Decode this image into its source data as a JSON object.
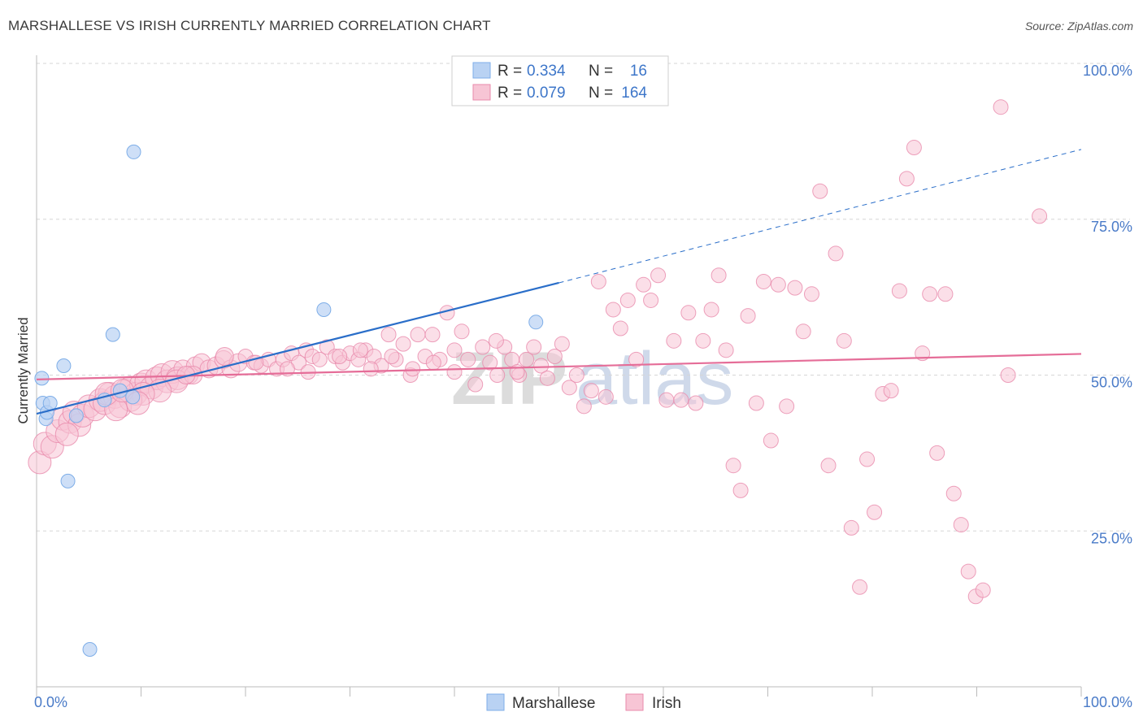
{
  "title": "MARSHALLESE VS IRISH CURRENTLY MARRIED CORRELATION CHART",
  "source": "Source: ZipAtlas.com",
  "watermark": {
    "zip": "ZIP",
    "atlas": "atlas"
  },
  "colors": {
    "marshallese": "#7eaee8",
    "marshallese_fill": "#b9d2f3",
    "marshallese_line": "#2a6ec9",
    "irish": "#e98aab",
    "irish_fill": "#f7c5d5",
    "irish_line": "#e56d98",
    "tick_label": "#4a7bc8",
    "grid": "#d6d6d6"
  },
  "legend": {
    "r_label": "R =",
    "n_label": "N =",
    "rows": [
      {
        "series": "Marshallese",
        "r": "0.334",
        "n": "16"
      },
      {
        "series": "Irish",
        "r": "0.079",
        "n": "164"
      }
    ]
  },
  "chart_data": {
    "type": "scatter",
    "title": "MARSHALLESE VS IRISH CURRENTLY MARRIED CORRELATION CHART",
    "xlabel": "",
    "ylabel": "Currently Married",
    "xlim": [
      0,
      100
    ],
    "ylim": [
      0,
      100
    ],
    "x_tick_labels": [
      "0.0%",
      "100.0%"
    ],
    "y_tick_labels": [
      "25.0%",
      "50.0%",
      "75.0%",
      "100.0%"
    ],
    "y_ticks": [
      25,
      50,
      75,
      100
    ],
    "grid": "horizontal dashed",
    "legend_position": "bottom-center",
    "series": [
      {
        "name": "Marshallese",
        "color": "#7eaee8",
        "points": [
          [
            0.5,
            49.5
          ],
          [
            0.6,
            45.5
          ],
          [
            0.9,
            43
          ],
          [
            1.0,
            44
          ],
          [
            1.3,
            45.5
          ],
          [
            2.6,
            51.5
          ],
          [
            3.0,
            33
          ],
          [
            3.8,
            43.5
          ],
          [
            5.1,
            6
          ],
          [
            7.3,
            56.5
          ],
          [
            9.2,
            46.5
          ],
          [
            9.3,
            85.8
          ],
          [
            27.5,
            60.5
          ],
          [
            47.8,
            58.5
          ],
          [
            8.0,
            47.5
          ],
          [
            6.5,
            46
          ]
        ],
        "trend": {
          "x": [
            0,
            50
          ],
          "y": [
            43.8,
            64.8
          ],
          "dashed_extension": {
            "x": [
              50,
              100
            ],
            "y": [
              64.8,
              86.2
            ]
          }
        }
      },
      {
        "name": "Irish",
        "color": "#e98aab",
        "points": [
          [
            0.3,
            36
          ],
          [
            0.8,
            39
          ],
          [
            1.5,
            38.5
          ],
          [
            2.0,
            41
          ],
          [
            2.5,
            43
          ],
          [
            3.2,
            42.5
          ],
          [
            3.6,
            44
          ],
          [
            4.1,
            42
          ],
          [
            4.4,
            43.5
          ],
          [
            5.0,
            45
          ],
          [
            5.6,
            44.5
          ],
          [
            6.1,
            46
          ],
          [
            6.5,
            45.5
          ],
          [
            7.0,
            47
          ],
          [
            7.5,
            46.5
          ],
          [
            8.0,
            45
          ],
          [
            8.5,
            47.5
          ],
          [
            9.0,
            48
          ],
          [
            9.5,
            47
          ],
          [
            10.0,
            48.5
          ],
          [
            10.5,
            49
          ],
          [
            11.0,
            48
          ],
          [
            11.5,
            49.5
          ],
          [
            12.0,
            50
          ],
          [
            12.5,
            49
          ],
          [
            13.0,
            50.5
          ],
          [
            13.5,
            49.5
          ],
          [
            14.0,
            51
          ],
          [
            14.6,
            50
          ],
          [
            15.2,
            51.5
          ],
          [
            15.8,
            52
          ],
          [
            16.5,
            51
          ],
          [
            17.2,
            51.5
          ],
          [
            17.9,
            52.5
          ],
          [
            18.6,
            51
          ],
          [
            19.3,
            52
          ],
          [
            20.0,
            53
          ],
          [
            20.8,
            52
          ],
          [
            21.5,
            51.5
          ],
          [
            22.2,
            52.5
          ],
          [
            23.0,
            51
          ],
          [
            23.6,
            52.5
          ],
          [
            24.4,
            53.5
          ],
          [
            25.1,
            52
          ],
          [
            25.8,
            54
          ],
          [
            26.4,
            53
          ],
          [
            27.1,
            52.5
          ],
          [
            27.8,
            54.5
          ],
          [
            28.6,
            53
          ],
          [
            29.3,
            52
          ],
          [
            30.0,
            53.5
          ],
          [
            30.8,
            52.5
          ],
          [
            31.5,
            54
          ],
          [
            32.3,
            53
          ],
          [
            33.0,
            51.5
          ],
          [
            33.7,
            56.5
          ],
          [
            34.4,
            52.5
          ],
          [
            35.1,
            55
          ],
          [
            35.8,
            50
          ],
          [
            36.5,
            56.5
          ],
          [
            37.2,
            53
          ],
          [
            37.9,
            56.5
          ],
          [
            38.6,
            52.5
          ],
          [
            39.3,
            60
          ],
          [
            40.0,
            54
          ],
          [
            40.7,
            57
          ],
          [
            41.3,
            52.5
          ],
          [
            42.0,
            48.5
          ],
          [
            42.7,
            54.5
          ],
          [
            43.4,
            52
          ],
          [
            44.1,
            50
          ],
          [
            44.8,
            54.5
          ],
          [
            45.5,
            52.5
          ],
          [
            46.2,
            50
          ],
          [
            46.9,
            52.5
          ],
          [
            47.6,
            54.5
          ],
          [
            48.3,
            51.5
          ],
          [
            48.9,
            49.5
          ],
          [
            49.6,
            53
          ],
          [
            50.3,
            55
          ],
          [
            51.0,
            48
          ],
          [
            51.7,
            50
          ],
          [
            52.4,
            45
          ],
          [
            53.1,
            47.5
          ],
          [
            53.8,
            65
          ],
          [
            54.5,
            46.5
          ],
          [
            55.2,
            60.5
          ],
          [
            55.9,
            57.5
          ],
          [
            56.6,
            62
          ],
          [
            57.4,
            52.5
          ],
          [
            58.1,
            64.5
          ],
          [
            58.8,
            62
          ],
          [
            59.5,
            66
          ],
          [
            60.3,
            46
          ],
          [
            61.0,
            55.5
          ],
          [
            61.7,
            46
          ],
          [
            62.4,
            60
          ],
          [
            63.1,
            45.5
          ],
          [
            63.8,
            55.5
          ],
          [
            64.6,
            60.5
          ],
          [
            65.3,
            66
          ],
          [
            66.0,
            54
          ],
          [
            66.7,
            35.5
          ],
          [
            67.4,
            31.5
          ],
          [
            68.1,
            59.5
          ],
          [
            68.9,
            45.5
          ],
          [
            69.6,
            65
          ],
          [
            70.3,
            39.5
          ],
          [
            71.0,
            64.5
          ],
          [
            71.8,
            45
          ],
          [
            72.6,
            64
          ],
          [
            73.4,
            57
          ],
          [
            74.2,
            63
          ],
          [
            75.0,
            79.5
          ],
          [
            75.8,
            35.5
          ],
          [
            76.5,
            69.5
          ],
          [
            77.3,
            55.5
          ],
          [
            78.0,
            25.5
          ],
          [
            78.8,
            16
          ],
          [
            79.5,
            36.5
          ],
          [
            80.2,
            28
          ],
          [
            81.0,
            47
          ],
          [
            81.8,
            47.5
          ],
          [
            82.6,
            63.5
          ],
          [
            83.3,
            81.5
          ],
          [
            84.0,
            86.5
          ],
          [
            84.8,
            53.5
          ],
          [
            85.5,
            63
          ],
          [
            86.2,
            37.5
          ],
          [
            87.0,
            63
          ],
          [
            87.8,
            31
          ],
          [
            88.5,
            26
          ],
          [
            89.2,
            18.5
          ],
          [
            89.9,
            14.5
          ],
          [
            90.6,
            15.5
          ],
          [
            92.3,
            93
          ],
          [
            93.0,
            50
          ],
          [
            96.0,
            75.5
          ],
          [
            13.4,
            49
          ],
          [
            15.0,
            50
          ],
          [
            18.0,
            53
          ],
          [
            21.0,
            52
          ],
          [
            24.0,
            51
          ],
          [
            26.0,
            50.5
          ],
          [
            29.0,
            53
          ],
          [
            31.0,
            54
          ],
          [
            32.0,
            51
          ],
          [
            34.0,
            53
          ],
          [
            36.0,
            51
          ],
          [
            38.0,
            52
          ],
          [
            40.0,
            50.5
          ],
          [
            44.0,
            55.5
          ],
          [
            46.0,
            50.5
          ],
          [
            11.8,
            47.5
          ],
          [
            10.2,
            47
          ],
          [
            9.0,
            46
          ],
          [
            7.6,
            44.5
          ],
          [
            6.7,
            47
          ],
          [
            8.2,
            47.5
          ],
          [
            9.7,
            45.5
          ],
          [
            2.9,
            40.5
          ],
          [
            14.3,
            50
          ]
        ],
        "trend": {
          "x": [
            0,
            100
          ],
          "y": [
            49.3,
            53.4
          ]
        }
      }
    ]
  }
}
